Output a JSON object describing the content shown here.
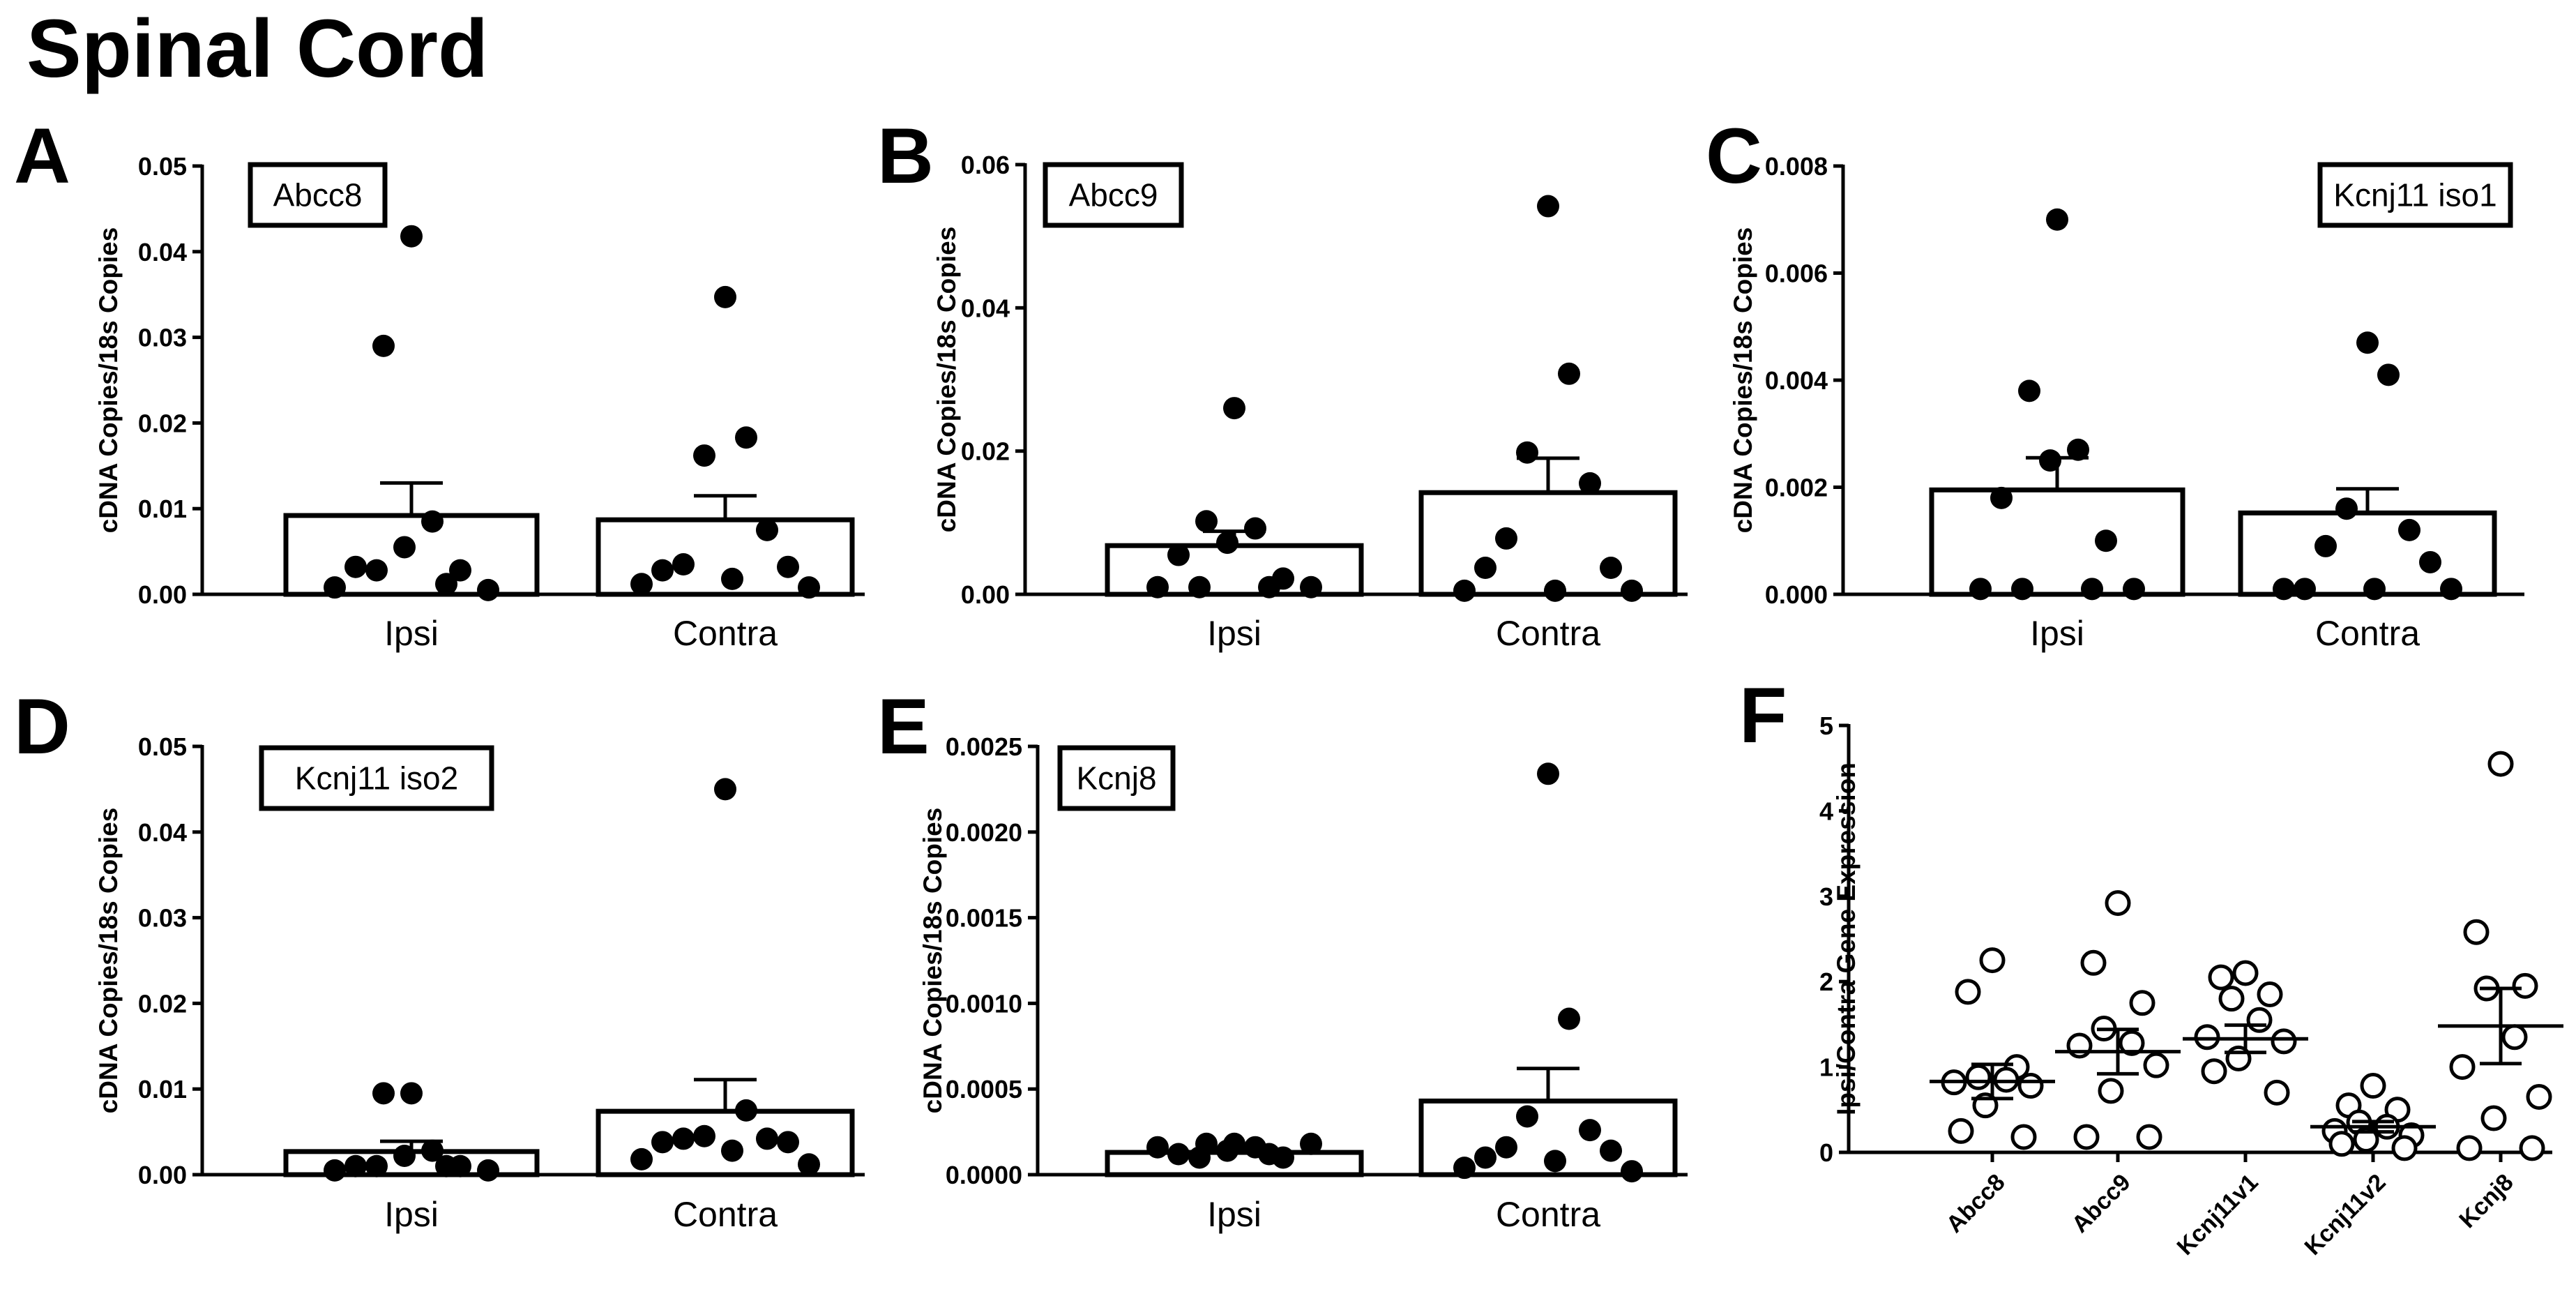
{
  "page_title": "Spinal Cord",
  "chart_data": [
    {
      "panel": "A",
      "type": "bar",
      "gene": "Abcc8",
      "ylabel": "cDNA Copies/18s Copies",
      "ylim": [
        0,
        0.05
      ],
      "yticks": [
        "0.00",
        "0.01",
        "0.02",
        "0.03",
        "0.04",
        "0.05"
      ],
      "categories": [
        "Ipsi",
        "Contra"
      ],
      "means": [
        0.0092,
        0.0087
      ],
      "errors": [
        0.0038,
        0.0028
      ],
      "points": [
        [
          0.0418,
          0.029,
          0.0085,
          0.0055,
          0.0032,
          0.0028,
          0.0028,
          0.0012,
          0.0008,
          0.0005
        ],
        [
          0.0347,
          0.0183,
          0.0162,
          0.0075,
          0.0035,
          0.0032,
          0.0028,
          0.0018,
          0.0012,
          0.0008
        ]
      ]
    },
    {
      "panel": "B",
      "type": "bar",
      "gene": "Abcc9",
      "ylabel": "cDNA Copies/18s Copies",
      "ylim": [
        0,
        0.06
      ],
      "yticks": [
        "0.00",
        "0.02",
        "0.04",
        "0.06"
      ],
      "categories": [
        "Ipsi",
        "Contra"
      ],
      "means": [
        0.0068,
        0.0142
      ],
      "errors": [
        0.002,
        0.0048
      ],
      "points": [
        [
          0.026,
          0.0102,
          0.0092,
          0.0072,
          0.0055,
          0.0022,
          0.001,
          0.001,
          0.001,
          0.001
        ],
        [
          0.0542,
          0.0308,
          0.0198,
          0.0155,
          0.0078,
          0.0037,
          0.0037,
          0.0005,
          0.0005,
          0.0005
        ]
      ]
    },
    {
      "panel": "C",
      "type": "bar",
      "gene": "Kcnj11 iso1",
      "ylabel": "cDNA Copies/18s Copies",
      "ylim": [
        0,
        0.008
      ],
      "yticks": [
        "0.000",
        "0.002",
        "0.004",
        "0.006",
        "0.008"
      ],
      "categories": [
        "Ipsi",
        "Contra"
      ],
      "means": [
        0.00195,
        0.00152
      ],
      "errors": [
        0.0006,
        0.00045
      ],
      "points": [
        [
          0.007,
          0.0038,
          0.0027,
          0.0025,
          0.0018,
          0.001,
          0.0001,
          0.0001,
          0.0001,
          0.0001
        ],
        [
          0.0047,
          0.0041,
          0.0016,
          0.0012,
          0.0009,
          0.0006,
          0.0001,
          0.0001,
          0.0001,
          0.0001
        ]
      ]
    },
    {
      "panel": "D",
      "type": "bar",
      "gene": "Kcnj11 iso2",
      "ylabel": "cDNA Copies/18s Copies",
      "ylim": [
        0,
        0.05
      ],
      "yticks": [
        "0.00",
        "0.01",
        "0.02",
        "0.03",
        "0.04",
        "0.05"
      ],
      "categories": [
        "Ipsi",
        "Contra"
      ],
      "means": [
        0.0027,
        0.0074
      ],
      "errors": [
        0.0012,
        0.0037
      ],
      "points": [
        [
          0.0095,
          0.0095,
          0.0028,
          0.0022,
          0.001,
          0.001,
          0.001,
          0.001,
          0.0005,
          0.0005
        ],
        [
          0.045,
          0.0075,
          0.0045,
          0.0042,
          0.0042,
          0.0038,
          0.0038,
          0.0028,
          0.0018,
          0.0012
        ]
      ]
    },
    {
      "panel": "E",
      "type": "bar",
      "gene": "Kcnj8",
      "ylabel": "cDNA Copies/18s Copies",
      "ylim": [
        0,
        0.0025
      ],
      "yticks": [
        "0.0000",
        "0.0005",
        "0.0010",
        "0.0015",
        "0.0020",
        "0.0025"
      ],
      "categories": [
        "Ipsi",
        "Contra"
      ],
      "means": [
        0.00013,
        0.00043
      ],
      "errors": [
        2e-05,
        0.00019
      ],
      "points": [
        [
          0.00018,
          0.00018,
          0.00016,
          0.00014,
          0.00012,
          0.0001,
          0.0001,
          0.00012,
          0.00016,
          0.00018
        ],
        [
          0.00234,
          0.00091,
          0.00034,
          0.00026,
          0.00016,
          0.00014,
          0.0001,
          8e-05,
          4e-05,
          2e-05
        ]
      ]
    },
    {
      "panel": "F",
      "type": "scatter",
      "ylabel": "Ipsi/Contra Gene Expression",
      "ylim": [
        0,
        5
      ],
      "yticks": [
        "0",
        "1",
        "2",
        "3",
        "4",
        "5"
      ],
      "categories": [
        "Abcc8",
        "Abcc9",
        "Kcnj11v1",
        "Kcnj11v2",
        "Kcnj8"
      ],
      "means": [
        0.83,
        1.18,
        1.33,
        0.3,
        1.48
      ],
      "errors": [
        0.2,
        0.26,
        0.16,
        0.06,
        0.44
      ],
      "points": [
        [
          2.25,
          1.88,
          1.0,
          0.88,
          0.85,
          0.82,
          0.78,
          0.55,
          0.25,
          0.18
        ],
        [
          2.92,
          2.22,
          1.75,
          1.45,
          1.28,
          1.25,
          1.02,
          0.72,
          0.18,
          0.18
        ],
        [
          2.1,
          2.05,
          1.85,
          1.8,
          1.55,
          1.35,
          1.3,
          1.1,
          0.95,
          0.7
        ],
        [
          0.78,
          0.55,
          0.5,
          0.35,
          0.3,
          0.25,
          0.2,
          0.15,
          0.1,
          0.05
        ],
        [
          4.55,
          2.58,
          1.95,
          1.92,
          1.35,
          1.0,
          0.65,
          0.4,
          0.05,
          0.05
        ]
      ]
    }
  ]
}
